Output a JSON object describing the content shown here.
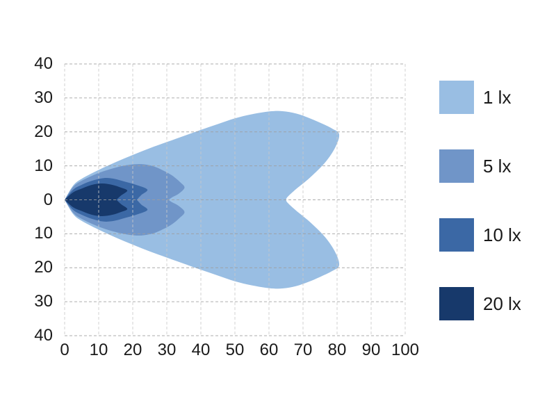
{
  "page": {
    "background": "#ffffff",
    "text_color": "#1a1a1a"
  },
  "chart_data": {
    "type": "area",
    "subtype": "filled-contour-isolux-beam-pattern",
    "title": "",
    "xlabel": "",
    "ylabel": "",
    "xlim": [
      0,
      100
    ],
    "ylim": [
      -40,
      40
    ],
    "x_tick_values": [
      0,
      10,
      20,
      30,
      40,
      50,
      60,
      70,
      80,
      90,
      100
    ],
    "x_tick_labels": [
      "0",
      "10",
      "20",
      "30",
      "40",
      "50",
      "60",
      "70",
      "80",
      "90",
      "100"
    ],
    "y_tick_values": [
      40,
      30,
      20,
      10,
      0,
      -10,
      -20,
      -30,
      -40
    ],
    "y_tick_labels": [
      "40",
      "30",
      "20",
      "10",
      "0",
      "10",
      "20",
      "30",
      "40"
    ],
    "grid": {
      "style": "dashed",
      "h_color": "#9e9e9e",
      "v_color": "#c9c9c9",
      "dash": "4 3"
    },
    "legend": {
      "position": "right",
      "items": [
        {
          "label": "1 lx",
          "color": "#99BEE3"
        },
        {
          "label": "5 lx",
          "color": "#7095C8"
        },
        {
          "label": "10 lx",
          "color": "#3B68A5"
        },
        {
          "label": "20 lx",
          "color": "#17396B"
        }
      ]
    },
    "series": [
      {
        "name": "1 lx",
        "level_lux": 1,
        "color": "#99BEE3",
        "symmetric_about_y0": true,
        "upper_boundary_points": [
          [
            0,
            0
          ],
          [
            2.5,
            4.2
          ],
          [
            5,
            6.2
          ],
          [
            10,
            8.8
          ],
          [
            15,
            11.1
          ],
          [
            20,
            13.2
          ],
          [
            25,
            15.2
          ],
          [
            30,
            17.0
          ],
          [
            35,
            18.8
          ],
          [
            40,
            20.6
          ],
          [
            45,
            22.3
          ],
          [
            50,
            24.0
          ],
          [
            55,
            25.2
          ],
          [
            60,
            26.0
          ],
          [
            64,
            26.1
          ],
          [
            68,
            25.4
          ],
          [
            71.5,
            24.2
          ],
          [
            75,
            22.7
          ],
          [
            78.5,
            21.0
          ],
          [
            80.6,
            19.3
          ],
          [
            79.5,
            15.5
          ],
          [
            76.5,
            11.0
          ],
          [
            72,
            6.5
          ],
          [
            68,
            3.2
          ],
          [
            65.5,
            0.9
          ],
          [
            65,
            0
          ]
        ]
      },
      {
        "name": "5 lx",
        "level_lux": 5,
        "color": "#7095C8",
        "symmetric_about_y0": true,
        "upper_boundary_points": [
          [
            0,
            0
          ],
          [
            2.5,
            3.8
          ],
          [
            5,
            5.6
          ],
          [
            10,
            7.9
          ],
          [
            15,
            9.5
          ],
          [
            19,
            10.3
          ],
          [
            22.5,
            10.5
          ],
          [
            26,
            9.9
          ],
          [
            29,
            8.6
          ],
          [
            31.5,
            7.2
          ],
          [
            33.8,
            5.3
          ],
          [
            35.2,
            3.6
          ],
          [
            33.5,
            1.8
          ],
          [
            31.5,
            0.7
          ],
          [
            30.5,
            0
          ]
        ]
      },
      {
        "name": "10 lx",
        "level_lux": 10,
        "color": "#3B68A5",
        "symmetric_about_y0": true,
        "upper_boundary_points": [
          [
            0,
            0
          ],
          [
            2.5,
            3.0
          ],
          [
            5,
            4.4
          ],
          [
            8,
            5.6
          ],
          [
            11.5,
            6.4
          ],
          [
            14.5,
            6.2
          ],
          [
            17.5,
            5.4
          ],
          [
            21,
            4.4
          ],
          [
            24.3,
            3.0
          ],
          [
            22.5,
            1.4
          ],
          [
            21.2,
            0
          ]
        ]
      },
      {
        "name": "20 lx",
        "level_lux": 20,
        "color": "#17396B",
        "symmetric_about_y0": true,
        "upper_boundary_points": [
          [
            0,
            0
          ],
          [
            2.5,
            2.2
          ],
          [
            5,
            3.3
          ],
          [
            8,
            4.4
          ],
          [
            11,
            4.8
          ],
          [
            14,
            4.4
          ],
          [
            16.5,
            3.6
          ],
          [
            18.4,
            2.7
          ],
          [
            16.6,
            1.3
          ],
          [
            15.2,
            0
          ]
        ]
      }
    ]
  }
}
